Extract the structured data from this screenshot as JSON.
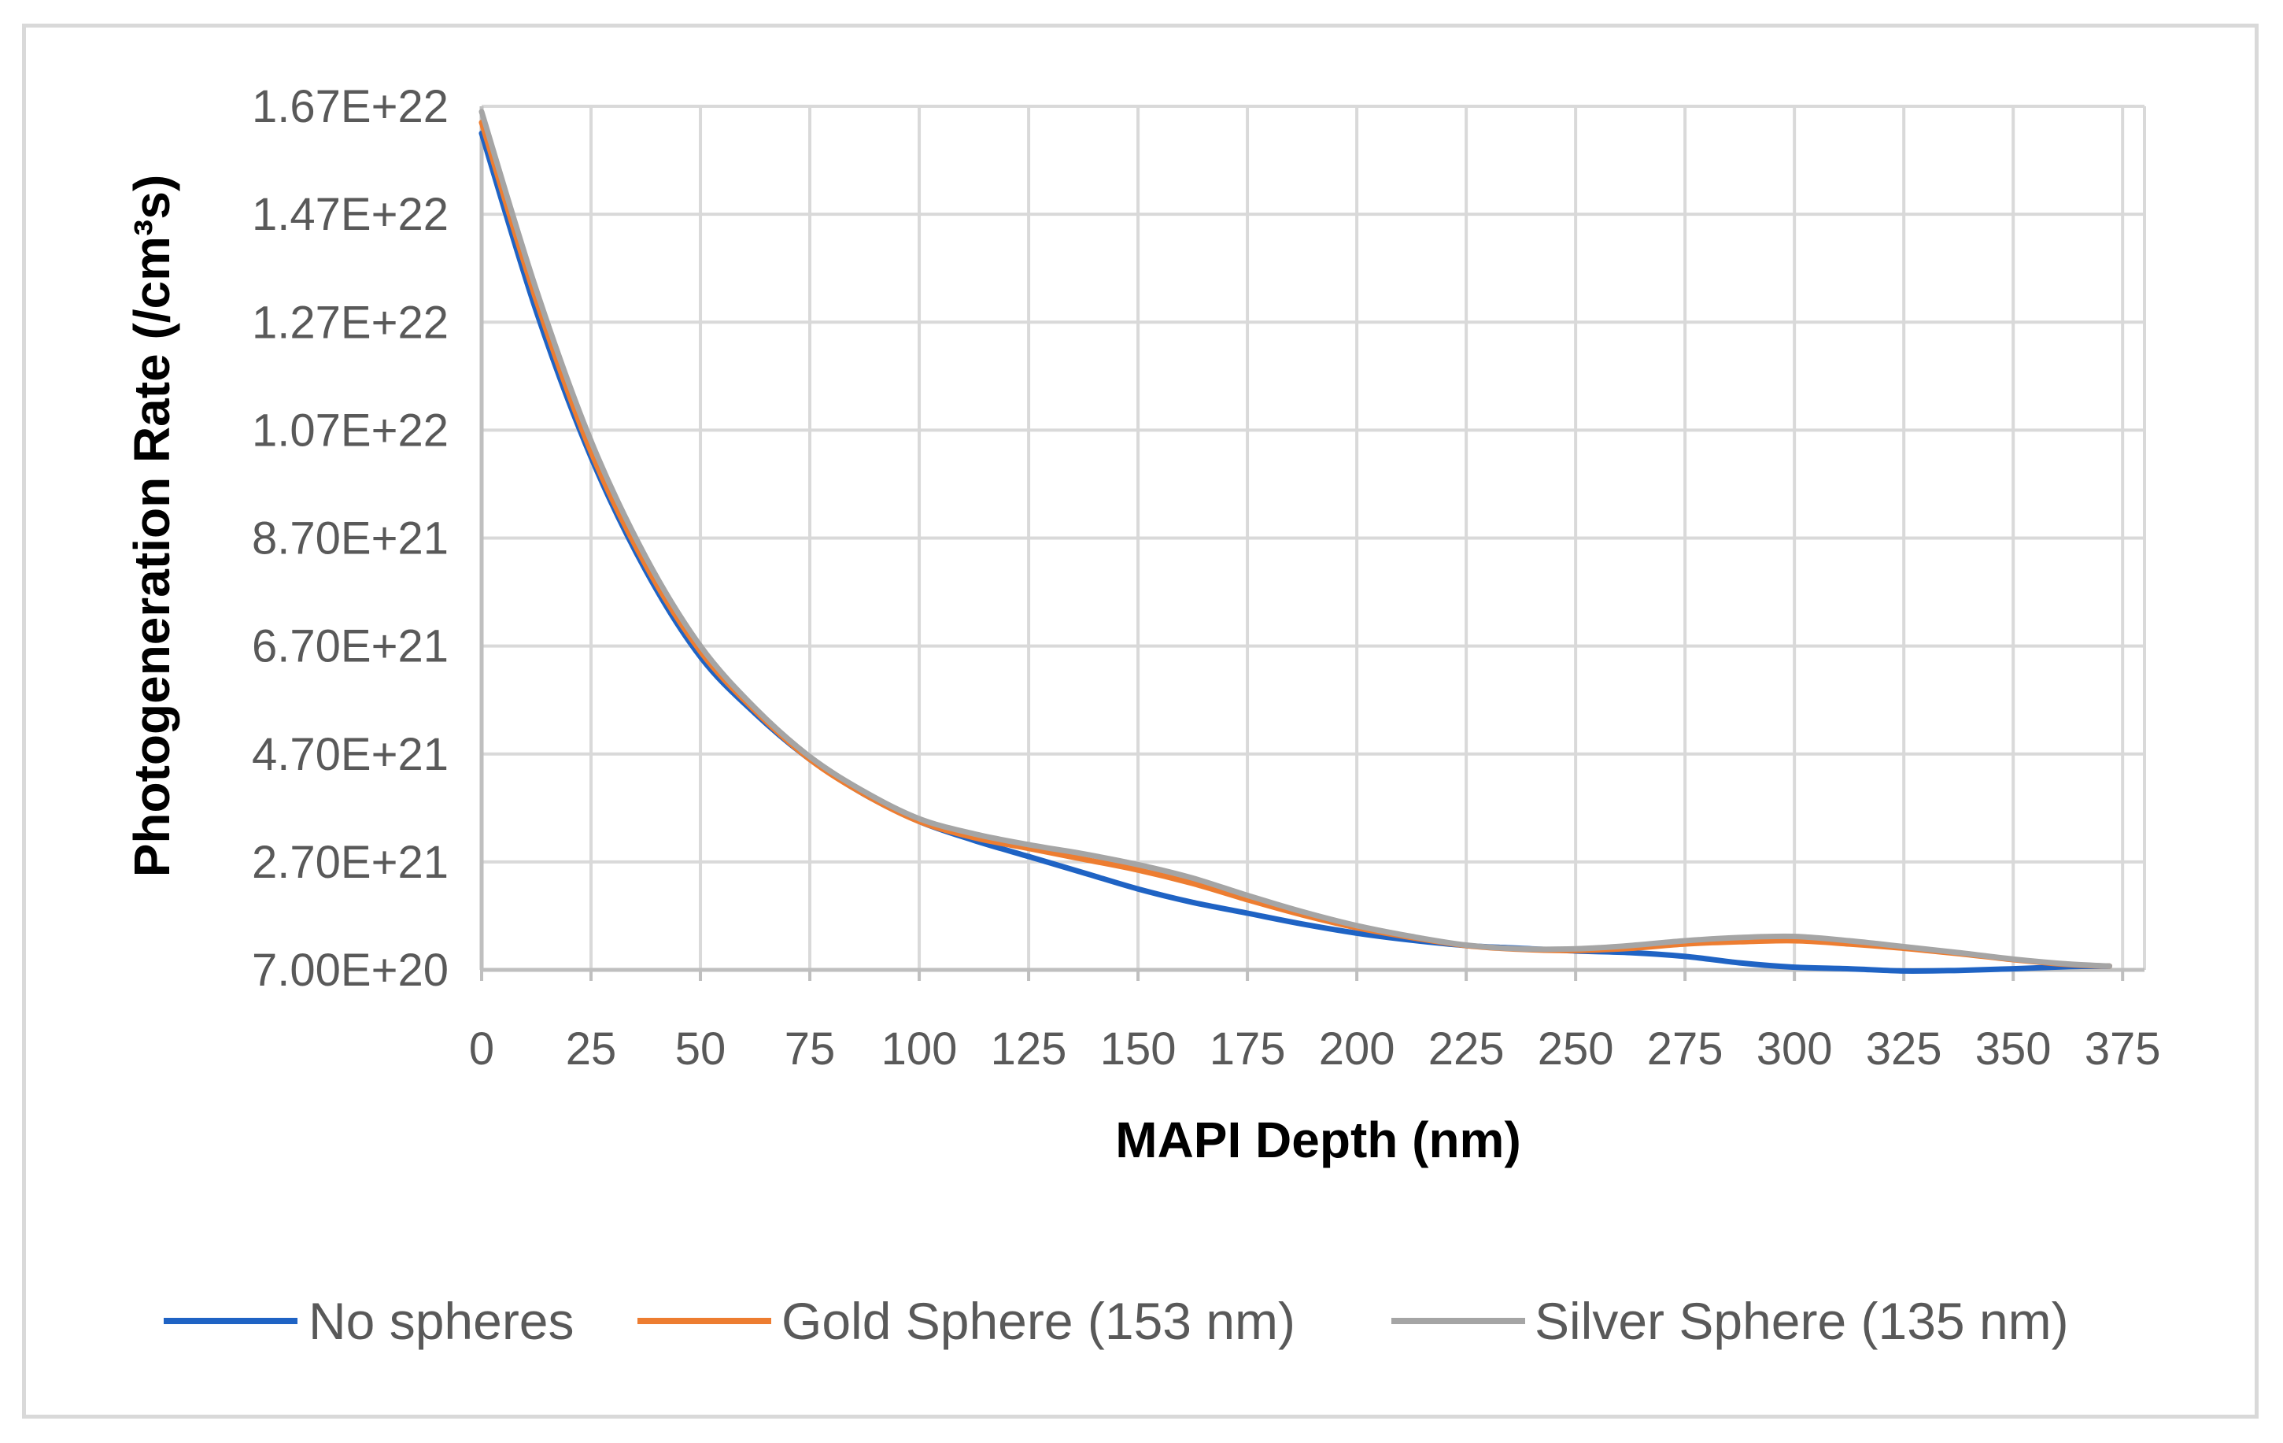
{
  "chart_data": {
    "type": "line",
    "title": "",
    "xlabel": "MAPI Depth (nm)",
    "ylabel": "Photogeneration Rate (/cm³s)",
    "xlim": [
      0,
      380
    ],
    "ylim": [
      7e+20,
      1.67e+22
    ],
    "x_ticks": [
      "0",
      "25",
      "50",
      "75",
      "100",
      "125",
      "150",
      "175",
      "200",
      "225",
      "250",
      "275",
      "300",
      "325",
      "350",
      "375"
    ],
    "x_tick_values": [
      0,
      25,
      50,
      75,
      100,
      125,
      150,
      175,
      200,
      225,
      250,
      275,
      300,
      325,
      350,
      375
    ],
    "y_ticks": [
      "7.00E+20",
      "2.70E+21",
      "4.70E+21",
      "6.70E+21",
      "8.70E+21",
      "1.07E+22",
      "1.27E+22",
      "1.47E+22",
      "1.67E+22"
    ],
    "y_tick_values": [
      7e+20,
      2.7e+21,
      4.7e+21,
      6.7e+21,
      8.7e+21,
      1.07e+22,
      1.27e+22,
      1.47e+22,
      1.67e+22
    ],
    "grid": true,
    "legend_position": "bottom",
    "x": [
      0,
      12.5,
      25,
      37.5,
      50,
      62.5,
      75,
      87.5,
      100,
      112.5,
      125,
      137.5,
      150,
      162.5,
      175,
      187.5,
      200,
      212.5,
      225,
      237.5,
      250,
      262.5,
      275,
      287.5,
      300,
      312.5,
      325,
      337.5,
      350,
      362.5,
      372
    ],
    "series": [
      {
        "name": "No spheres",
        "color": "#1f63c4",
        "values": [
          1.62e+22,
          1.29e+22,
          1.02e+22,
          8.1e+21,
          6.5e+21,
          5.45e+21,
          4.6e+21,
          3.95e+21,
          3.45e+21,
          3.1e+21,
          2.8e+21,
          2.5e+21,
          2.2e+21,
          1.95e+21,
          1.75e+21,
          1.55e+21,
          1.38e+21,
          1.25e+21,
          1.15e+21,
          1.1e+21,
          1.05e+21,
          1.02e+21,
          9.5e+20,
          8.3e+20,
          7.5e+20,
          7.2e+20,
          6.8e+20,
          6.9e+20,
          7.2e+20,
          7.6e+20,
          7.7e+20
        ]
      },
      {
        "name": "Gold Sphere (153 nm)",
        "color": "#ed7d31",
        "values": [
          1.64e+22,
          1.31e+22,
          1.03e+22,
          8.2e+21,
          6.6e+21,
          5.5e+21,
          4.6e+21,
          3.95e+21,
          3.45e+21,
          3.15e+21,
          2.95e+21,
          2.75e+21,
          2.55e+21,
          2.3e+21,
          2e+21,
          1.72e+21,
          1.48e+21,
          1.3e+21,
          1.15e+21,
          1.08e+21,
          1.06e+21,
          1.1e+21,
          1.18e+21,
          1.22e+21,
          1.24e+21,
          1.18e+21,
          1.1e+21,
          1e+21,
          8.9e+20,
          8e+20,
          7.7e+20
        ]
      },
      {
        "name": "Silver Sphere (135 nm)",
        "color": "#a5a5a5",
        "values": [
          1.66e+22,
          1.33e+22,
          1.05e+22,
          8.35e+21,
          6.7e+21,
          5.55e+21,
          4.65e+21,
          4e+21,
          3.5e+21,
          3.22e+21,
          3.02e+21,
          2.85e+21,
          2.65e+21,
          2.4e+21,
          2.08e+21,
          1.78e+21,
          1.52e+21,
          1.32e+21,
          1.16e+21,
          1.09e+21,
          1.09e+21,
          1.15e+21,
          1.24e+21,
          1.3e+21,
          1.32e+21,
          1.24e+21,
          1.13e+21,
          1.02e+21,
          9e+20,
          8.1e+20,
          7.7e+20
        ]
      }
    ]
  }
}
